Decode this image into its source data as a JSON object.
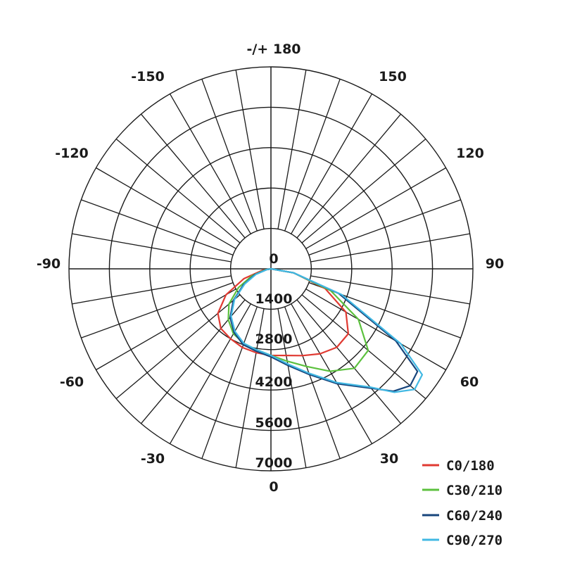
{
  "chart_data": {
    "type": "polar",
    "angle_labels": [
      {
        "angle": 180,
        "text": "-/+ 180"
      },
      {
        "angle": 150,
        "text": "150"
      },
      {
        "angle": -150,
        "text": "-150"
      },
      {
        "angle": 120,
        "text": "120"
      },
      {
        "angle": -120,
        "text": "-120"
      },
      {
        "angle": 90,
        "text": "90"
      },
      {
        "angle": -90,
        "text": "-90"
      },
      {
        "angle": 60,
        "text": "60"
      },
      {
        "angle": -60,
        "text": "-60"
      },
      {
        "angle": 30,
        "text": "30"
      },
      {
        "angle": -30,
        "text": "-30"
      },
      {
        "angle": 0,
        "text": "0"
      }
    ],
    "radial_ticks": [
      0,
      1400,
      2800,
      4200,
      5600,
      7000
    ],
    "radial_labels": [
      "0",
      "1400",
      "2800",
      "4200",
      "5600",
      "7000"
    ],
    "rmax": 7000,
    "spoke_step_deg": 10,
    "series": [
      {
        "name": "C0/180",
        "color": "#e03a32",
        "points": [
          [
            -90,
            0
          ],
          [
            -80,
            300
          ],
          [
            -70,
            1000
          ],
          [
            -60,
            1800
          ],
          [
            -50,
            2400
          ],
          [
            -40,
            2700
          ],
          [
            -30,
            2800
          ],
          [
            -20,
            2900
          ],
          [
            -10,
            2950
          ],
          [
            0,
            3000
          ],
          [
            10,
            3050
          ],
          [
            20,
            3200
          ],
          [
            30,
            3400
          ],
          [
            40,
            3550
          ],
          [
            50,
            3500
          ],
          [
            60,
            3000
          ],
          [
            70,
            2000
          ],
          [
            80,
            800
          ],
          [
            90,
            0
          ]
        ]
      },
      {
        "name": "C30/210",
        "color": "#5cc13e",
        "points": [
          [
            -90,
            0
          ],
          [
            -80,
            200
          ],
          [
            -70,
            700
          ],
          [
            -60,
            1300
          ],
          [
            -50,
            1900
          ],
          [
            -40,
            2300
          ],
          [
            -30,
            2600
          ],
          [
            -20,
            2750
          ],
          [
            -10,
            2850
          ],
          [
            0,
            3000
          ],
          [
            10,
            3250
          ],
          [
            20,
            3600
          ],
          [
            30,
            4100
          ],
          [
            40,
            4500
          ],
          [
            50,
            4400
          ],
          [
            60,
            3500
          ],
          [
            70,
            2200
          ],
          [
            80,
            800
          ],
          [
            90,
            0
          ]
        ]
      },
      {
        "name": "C60/240",
        "color": "#17457c",
        "points": [
          [
            -90,
            0
          ],
          [
            -80,
            150
          ],
          [
            -70,
            600
          ],
          [
            -60,
            1100
          ],
          [
            -50,
            1700
          ],
          [
            -40,
            2200
          ],
          [
            -30,
            2550
          ],
          [
            -20,
            2800
          ],
          [
            -10,
            2900
          ],
          [
            0,
            3050
          ],
          [
            10,
            3400
          ],
          [
            20,
            3900
          ],
          [
            30,
            4600
          ],
          [
            40,
            5400
          ],
          [
            45,
            6000
          ],
          [
            50,
            6300
          ],
          [
            55,
            6200
          ],
          [
            60,
            5000
          ],
          [
            70,
            2500
          ],
          [
            80,
            800
          ],
          [
            90,
            0
          ]
        ]
      },
      {
        "name": "C90/270",
        "color": "#41b8e3",
        "points": [
          [
            -90,
            0
          ],
          [
            -80,
            150
          ],
          [
            -70,
            550
          ],
          [
            -60,
            1050
          ],
          [
            -50,
            1650
          ],
          [
            -40,
            2150
          ],
          [
            -30,
            2500
          ],
          [
            -20,
            2750
          ],
          [
            -10,
            2850
          ],
          [
            0,
            3000
          ],
          [
            10,
            3350
          ],
          [
            20,
            3850
          ],
          [
            30,
            4550
          ],
          [
            40,
            5350
          ],
          [
            45,
            6050
          ],
          [
            50,
            6500
          ],
          [
            55,
            6400
          ],
          [
            60,
            5200
          ],
          [
            70,
            2600
          ],
          [
            80,
            800
          ],
          [
            90,
            0
          ]
        ]
      }
    ],
    "legend_position": "bottom-right",
    "grid": true
  }
}
